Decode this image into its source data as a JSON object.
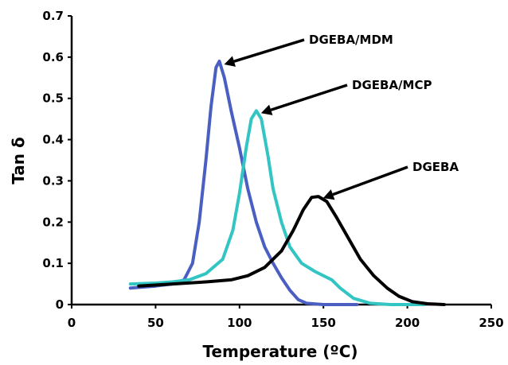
{
  "chart_data": {
    "type": "line",
    "xlabel": "Temperature (ºC)",
    "ylabel": "Tan δ",
    "xlim": [
      0,
      250
    ],
    "ylim": [
      0,
      0.7
    ],
    "xticks": [
      "0",
      "50",
      "100",
      "150",
      "200",
      "250"
    ],
    "yticks": [
      "0",
      "0.1",
      "0.2",
      "0.3",
      "0.4",
      "0.5",
      "0.6",
      "0.7"
    ],
    "grid": false,
    "legend": "none",
    "series": [
      {
        "name": "DGEBA/MDM",
        "color": "#4a5fc1",
        "points": [
          [
            35,
            0.04
          ],
          [
            50,
            0.045
          ],
          [
            60,
            0.05
          ],
          [
            67,
            0.06
          ],
          [
            72,
            0.1
          ],
          [
            76,
            0.2
          ],
          [
            80,
            0.35
          ],
          [
            83,
            0.48
          ],
          [
            86,
            0.575
          ],
          [
            88,
            0.59
          ],
          [
            91,
            0.55
          ],
          [
            95,
            0.47
          ],
          [
            100,
            0.38
          ],
          [
            105,
            0.28
          ],
          [
            110,
            0.2
          ],
          [
            115,
            0.14
          ],
          [
            120,
            0.1
          ],
          [
            125,
            0.065
          ],
          [
            130,
            0.035
          ],
          [
            135,
            0.012
          ],
          [
            140,
            0.003
          ],
          [
            150,
            0
          ],
          [
            170,
            0
          ]
        ]
      },
      {
        "name": "DGEBA/MCP",
        "color": "#33c4c4",
        "points": [
          [
            35,
            0.05
          ],
          [
            50,
            0.052
          ],
          [
            60,
            0.055
          ],
          [
            70,
            0.06
          ],
          [
            80,
            0.075
          ],
          [
            90,
            0.11
          ],
          [
            96,
            0.18
          ],
          [
            100,
            0.27
          ],
          [
            104,
            0.38
          ],
          [
            107,
            0.45
          ],
          [
            110,
            0.47
          ],
          [
            113,
            0.45
          ],
          [
            117,
            0.36
          ],
          [
            120,
            0.28
          ],
          [
            125,
            0.2
          ],
          [
            130,
            0.14
          ],
          [
            137,
            0.1
          ],
          [
            145,
            0.08
          ],
          [
            155,
            0.06
          ],
          [
            160,
            0.04
          ],
          [
            168,
            0.015
          ],
          [
            178,
            0.003
          ],
          [
            190,
            0
          ],
          [
            210,
            0
          ]
        ]
      },
      {
        "name": "DGEBA",
        "color": "#000000",
        "points": [
          [
            40,
            0.045
          ],
          [
            60,
            0.05
          ],
          [
            80,
            0.055
          ],
          [
            95,
            0.06
          ],
          [
            105,
            0.07
          ],
          [
            115,
            0.09
          ],
          [
            125,
            0.13
          ],
          [
            132,
            0.18
          ],
          [
            138,
            0.23
          ],
          [
            143,
            0.26
          ],
          [
            147,
            0.262
          ],
          [
            152,
            0.25
          ],
          [
            158,
            0.21
          ],
          [
            165,
            0.16
          ],
          [
            172,
            0.11
          ],
          [
            180,
            0.07
          ],
          [
            188,
            0.04
          ],
          [
            195,
            0.02
          ],
          [
            203,
            0.007
          ],
          [
            212,
            0.002
          ],
          [
            222,
            0
          ]
        ]
      }
    ],
    "annotations": [
      {
        "text": "DGEBA/MDM",
        "series": "DGEBA/MDM"
      },
      {
        "text": "DGEBA/MCP",
        "series": "DGEBA/MCP"
      },
      {
        "text": "DGEBA",
        "series": "DGEBA"
      }
    ]
  }
}
